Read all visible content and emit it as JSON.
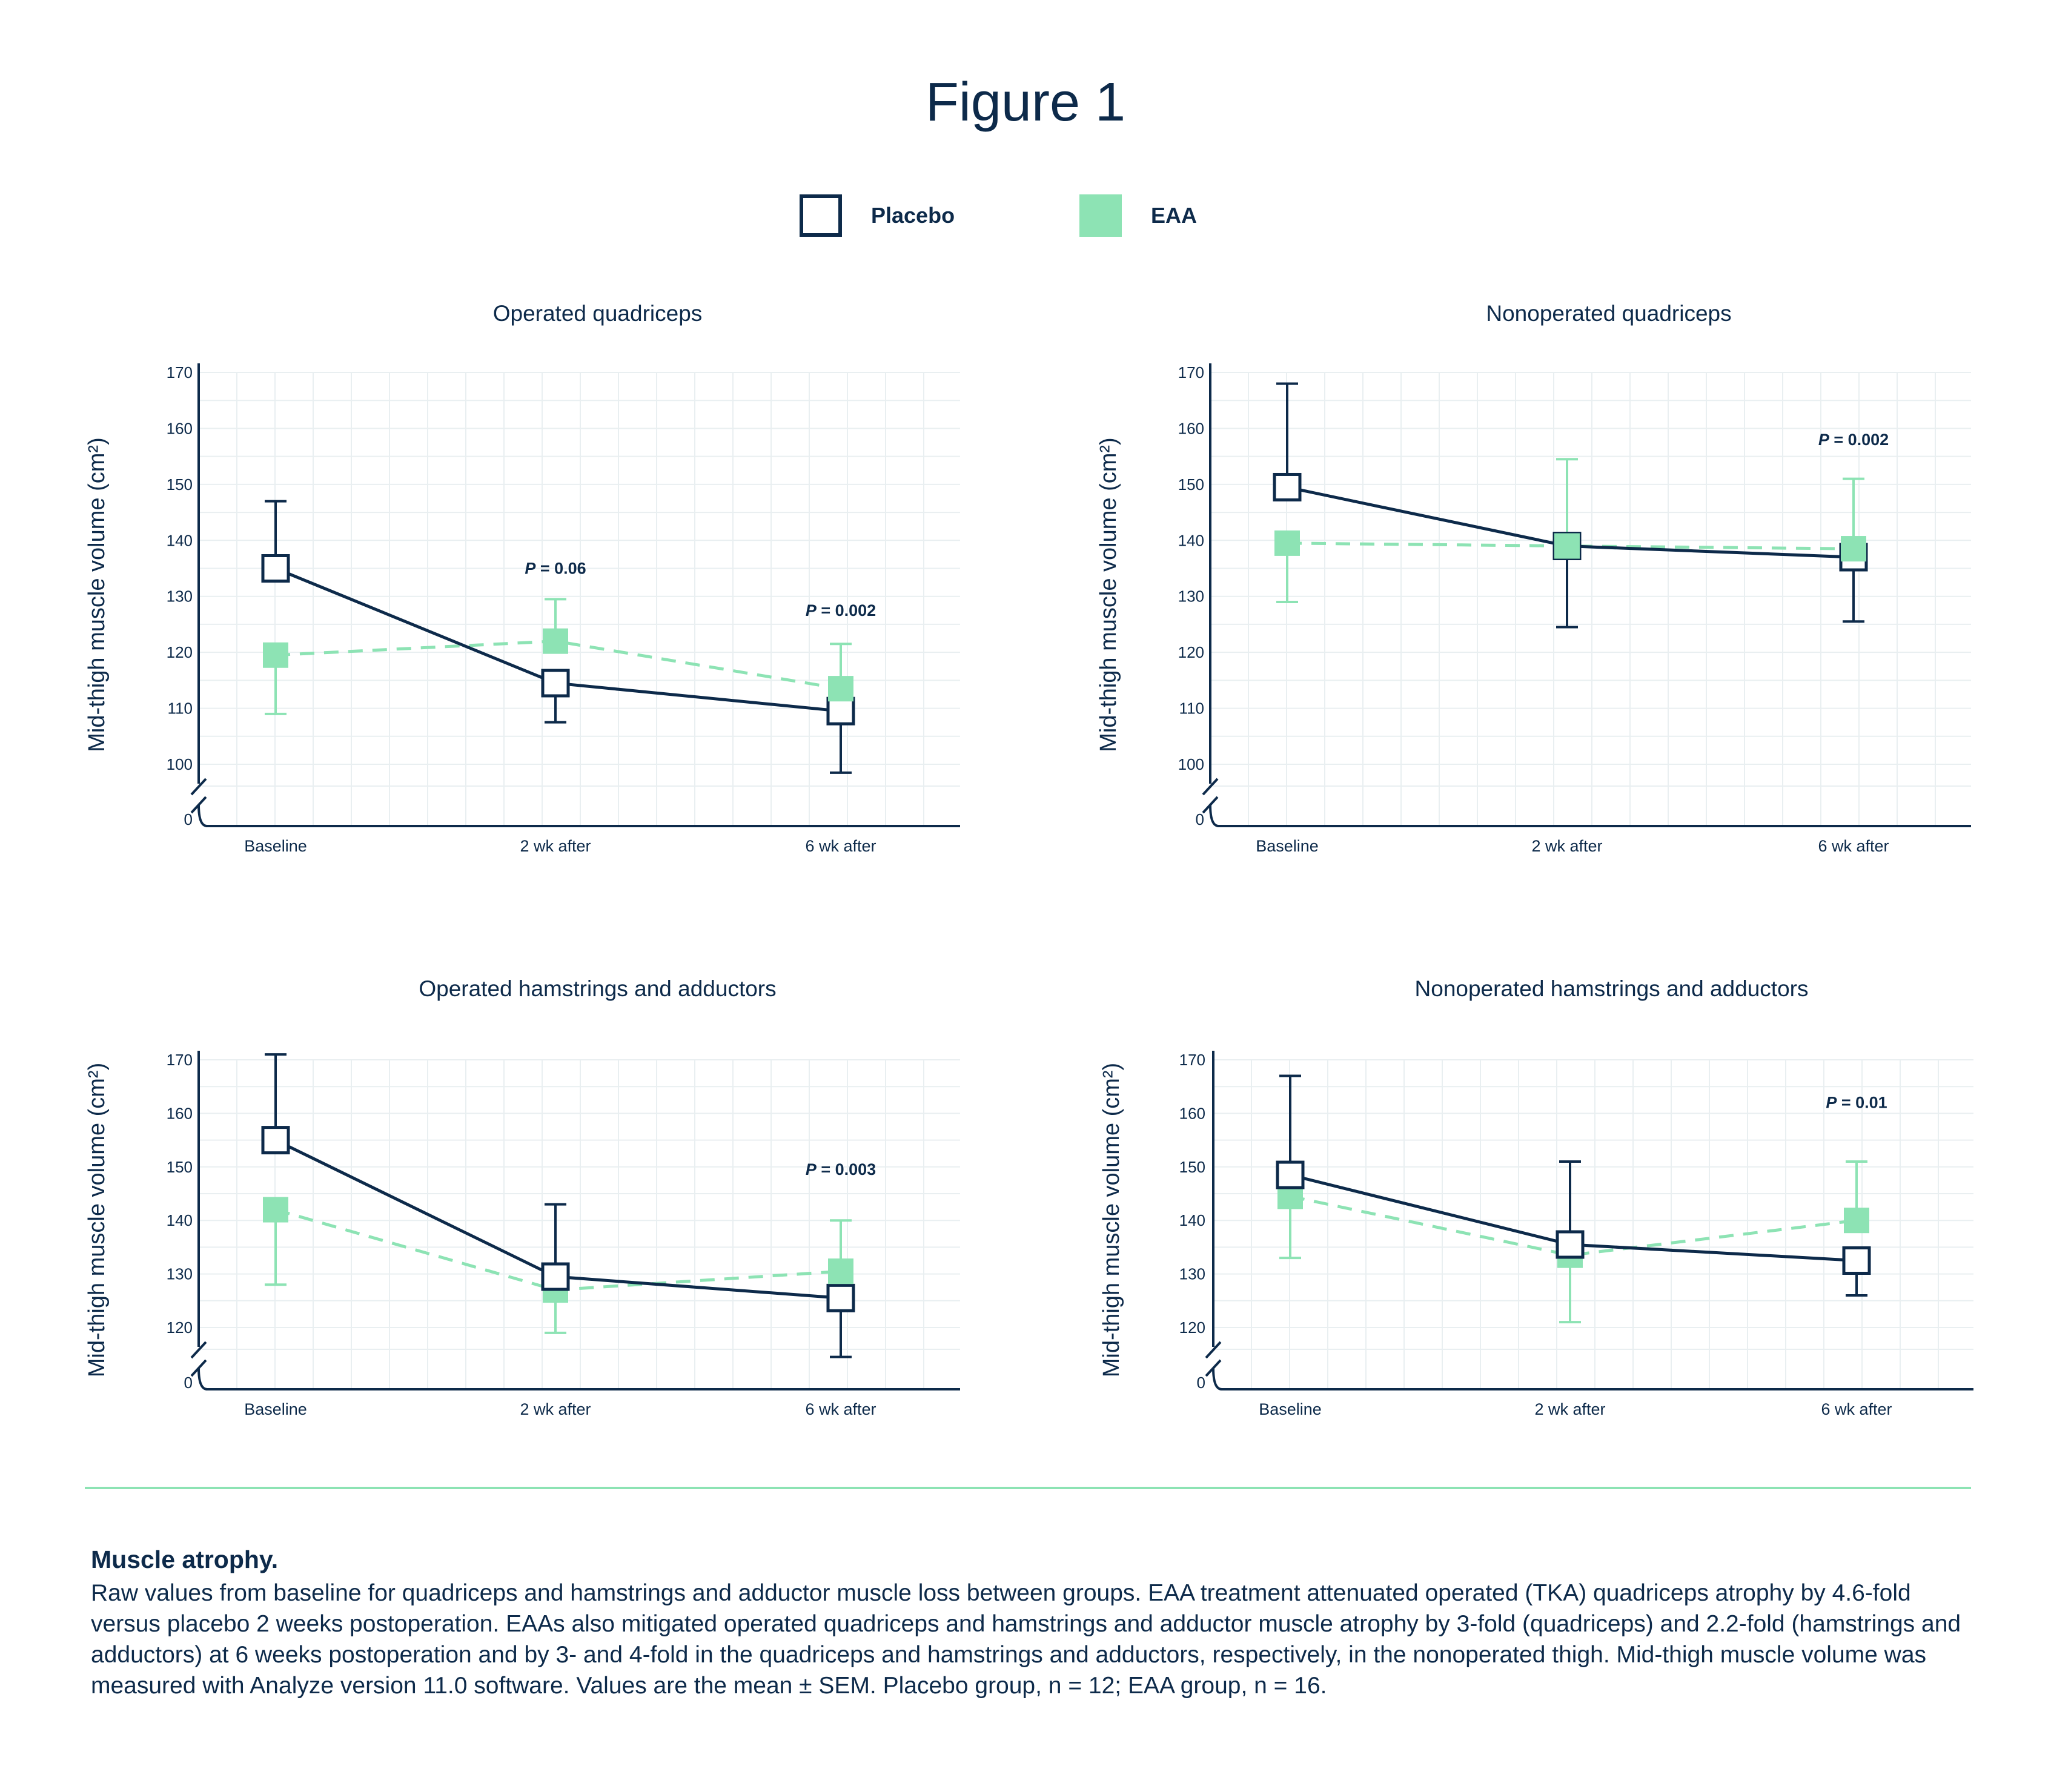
{
  "figure": {
    "title": "Figure 1"
  },
  "legend": {
    "placebo": {
      "label": "Placebo",
      "color": "#0d2a4a"
    },
    "eaa": {
      "label": "EAA",
      "color": "#8de3b4"
    }
  },
  "caption": {
    "title": "Muscle atrophy.",
    "text": "Raw values from baseline for quadriceps and hamstrings and adductor muscle loss between groups. EAA treatment attenuated operated (TKA) quadriceps atrophy by 4.6-fold versus placebo 2 weeks postoperation. EAAs also mitigated operated quadriceps and hamstrings and adductor muscle atrophy by 3-fold (quadriceps) and 2.2-fold (hamstrings and adductors) at 6 weeks postoperation and by 3- and 4-fold in the quadriceps and hamstrings and adductors, respectively, in the nonoperated thigh. Mid-thigh muscle volume was measured with Analyze version 11.0 software. Values are the mean ± SEM. Placebo group, n = 12; EAA group, n = 16."
  },
  "chart_data": [
    {
      "type": "line",
      "title": "Operated quadriceps",
      "ylabel": "Mid-thigh muscle volume (cm²)",
      "xlabel": "",
      "categories": [
        "Baseline",
        "2 wk after",
        "6 wk after"
      ],
      "yticks": [
        100,
        110,
        120,
        130,
        140,
        150,
        160,
        170
      ],
      "ylim": [
        100,
        170
      ],
      "axis_break": true,
      "zero_label": "0",
      "grid": true,
      "series": [
        {
          "name": "Placebo",
          "values": [
            135,
            114.5,
            109.5
          ],
          "error": [
            [
              135,
              147
            ],
            [
              107.5,
              114.5
            ],
            [
              98.5,
              109.5
            ]
          ]
        },
        {
          "name": "EAA",
          "values": [
            119.5,
            122,
            113.5
          ],
          "error": [
            [
              109,
              119.5
            ],
            [
              122,
              129.5
            ],
            [
              113.5,
              121.5
            ]
          ]
        }
      ],
      "annotations": [
        {
          "category": "2 wk after",
          "y": 135,
          "prefix": "P",
          "text": " = 0.06"
        },
        {
          "category": "6 wk after",
          "y": 127.5,
          "prefix": "P",
          "text": " = 0.002"
        }
      ]
    },
    {
      "type": "line",
      "title": "Nonoperated quadriceps",
      "ylabel": "Mid-thigh muscle volume (cm²)",
      "xlabel": "",
      "categories": [
        "Baseline",
        "2 wk after",
        "6 wk after"
      ],
      "yticks": [
        100,
        110,
        120,
        130,
        140,
        150,
        160,
        170
      ],
      "ylim": [
        100,
        170
      ],
      "axis_break": true,
      "zero_label": "0",
      "grid": true,
      "series": [
        {
          "name": "Placebo",
          "values": [
            149.5,
            139,
            137
          ],
          "error": [
            [
              149.5,
              168
            ],
            [
              124.5,
              139
            ],
            [
              125.5,
              137
            ]
          ]
        },
        {
          "name": "EAA",
          "values": [
            139.5,
            139,
            138.5
          ],
          "error": [
            [
              129,
              139.5
            ],
            [
              139,
              154.5
            ],
            [
              138.5,
              151
            ]
          ]
        }
      ],
      "annotations": [
        {
          "category": "6 wk after",
          "y": 158,
          "prefix": "P",
          "text": " = 0.002"
        }
      ]
    },
    {
      "type": "line",
      "title": "Operated hamstrings and adductors",
      "ylabel": "Mid-thigh muscle volume (cm²)",
      "xlabel": "",
      "categories": [
        "Baseline",
        "2 wk after",
        "6 wk after"
      ],
      "yticks": [
        120,
        130,
        140,
        150,
        160,
        170
      ],
      "ylim": [
        120,
        170
      ],
      "axis_break": true,
      "zero_label": "0",
      "grid": true,
      "series": [
        {
          "name": "Placebo",
          "values": [
            155,
            129.5,
            125.5
          ],
          "error": [
            [
              155,
              171
            ],
            [
              129.5,
              143
            ],
            [
              114.5,
              125.5
            ]
          ]
        },
        {
          "name": "EAA",
          "values": [
            142,
            127,
            130.5
          ],
          "error": [
            [
              128,
              142
            ],
            [
              119,
              127
            ],
            [
              130.5,
              140
            ]
          ]
        }
      ],
      "annotations": [
        {
          "category": "6 wk after",
          "y": 149.5,
          "prefix": "P",
          "text": " = 0.003"
        }
      ]
    },
    {
      "type": "line",
      "title": "Nonoperated hamstrings and adductors",
      "ylabel": "Mid-thigh muscle volume (cm²)",
      "xlabel": "",
      "categories": [
        "Baseline",
        "2 wk after",
        "6 wk after"
      ],
      "yticks": [
        120,
        130,
        140,
        150,
        160,
        170
      ],
      "ylim": [
        120,
        170
      ],
      "axis_break": true,
      "zero_label": "0",
      "grid": true,
      "series": [
        {
          "name": "Placebo",
          "values": [
            148.5,
            135.5,
            132.5
          ],
          "error": [
            [
              148.5,
              167
            ],
            [
              135.5,
              151
            ],
            [
              126,
              132.5
            ]
          ]
        },
        {
          "name": "EAA",
          "values": [
            144.5,
            133.5,
            140
          ],
          "error": [
            [
              133,
              144.5
            ],
            [
              121,
              133.5
            ],
            [
              140,
              151
            ]
          ]
        }
      ],
      "annotations": [
        {
          "category": "6 wk after",
          "y": 162,
          "prefix": "P",
          "text": " = 0.01"
        }
      ]
    }
  ]
}
